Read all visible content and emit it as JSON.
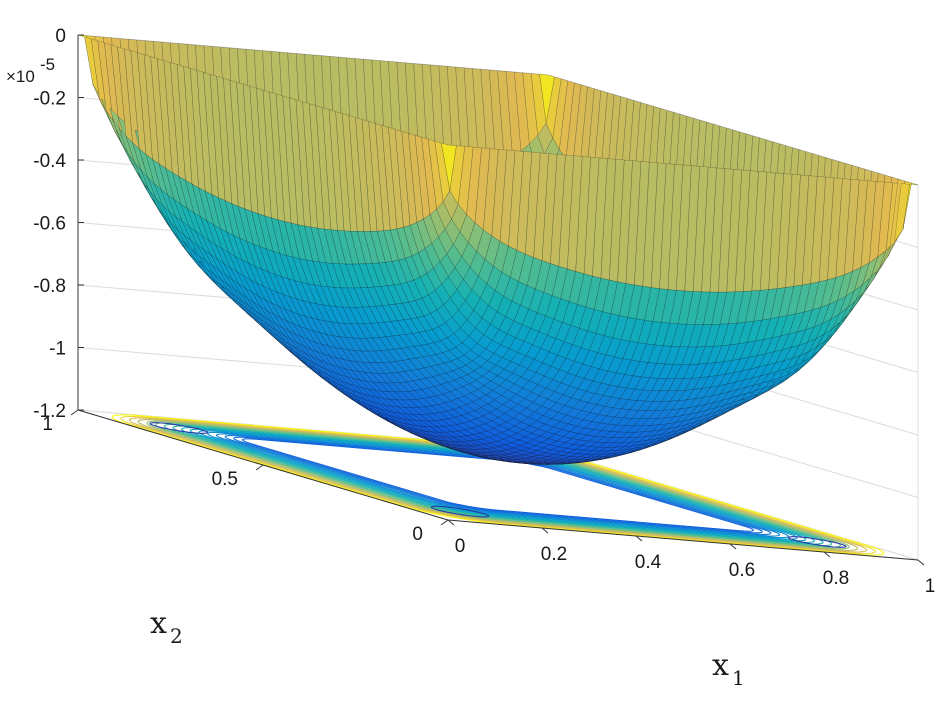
{
  "chart_data": {
    "type": "surface",
    "surface_kind": "3D surface with contour projection on floor",
    "colormap": "parula",
    "grid": true,
    "z_multiplier": "×10",
    "z_multiplier_exponent": "-5",
    "xlabel": "x",
    "xlabel_sub": "1",
    "ylabel": "x",
    "ylabel_sub": "2",
    "xlim": [
      0,
      1
    ],
    "ylim": [
      0,
      1
    ],
    "zlim": [
      -1.2,
      0
    ],
    "x_ticks": [
      "0",
      "0.2",
      "0.4",
      "0.6",
      "0.8",
      "1"
    ],
    "y_ticks": [
      "0",
      "0.5",
      "1"
    ],
    "z_ticks": [
      "0",
      "-0.2",
      "-0.4",
      "-0.6",
      "-0.8",
      "-1",
      "-1.2"
    ],
    "surface_min": -1.2,
    "surface_max": 0,
    "minima_locations": [
      [
        0.12,
        0.12
      ],
      [
        0.12,
        0.88
      ],
      [
        0.88,
        0.12
      ],
      [
        0.88,
        0.88
      ]
    ]
  }
}
